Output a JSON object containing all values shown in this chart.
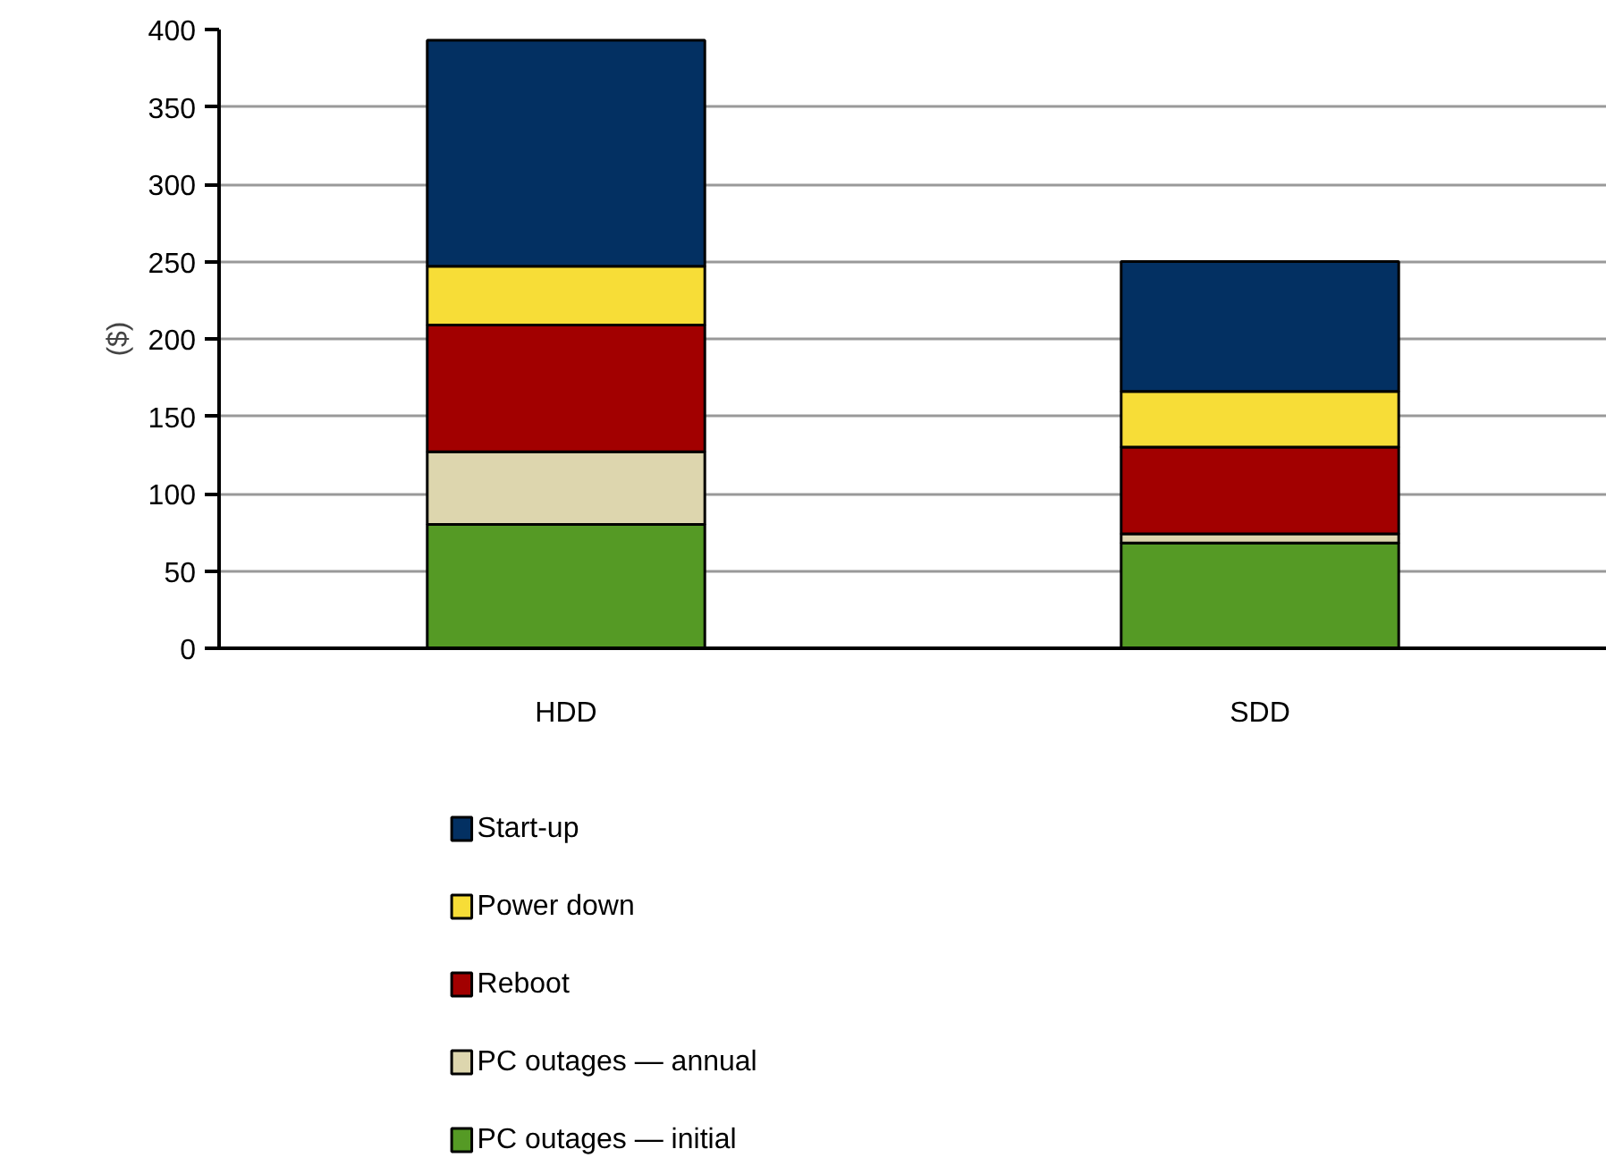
{
  "chart_data": {
    "type": "bar",
    "stacked": true,
    "ylabel": "($)",
    "categories": [
      "HDD",
      "SDD"
    ],
    "series": [
      {
        "name": "PC outages — initial",
        "color": "#559a25",
        "values": [
          80,
          68
        ]
      },
      {
        "name": "PC outages — annual",
        "color": "#ddd6ae",
        "values": [
          47,
          6
        ]
      },
      {
        "name": "Reboot",
        "color": "#a20000",
        "values": [
          82,
          56
        ]
      },
      {
        "name": "Power down",
        "color": "#f7dd37",
        "values": [
          38,
          36
        ]
      },
      {
        "name": "Start-up",
        "color": "#033062",
        "values": [
          146,
          84
        ]
      }
    ],
    "ylim": [
      0,
      400
    ],
    "yticks": [
      0,
      50,
      100,
      150,
      200,
      250,
      300,
      350,
      400
    ],
    "grid": "y",
    "legend": "bottom"
  }
}
